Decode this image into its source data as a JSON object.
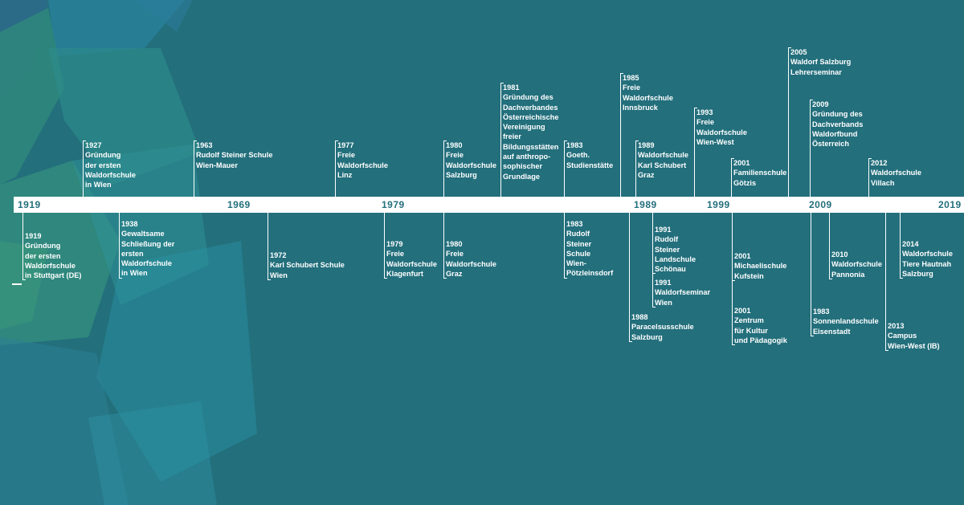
{
  "timeline": {
    "axis_years": [
      "1919",
      "1969",
      "1979",
      "1989",
      "1999",
      "2009",
      "2019"
    ],
    "events_above": [
      {
        "year": "1927",
        "lines": [
          "Gründung",
          "der ersten",
          "Waldorfschule",
          "in Wien"
        ]
      },
      {
        "year": "1963",
        "lines": [
          "Rudolf Steiner Schule",
          "Wien-Mauer"
        ]
      },
      {
        "year": "1977",
        "lines": [
          "Freie",
          "Waldorfschule",
          "Linz"
        ]
      },
      {
        "year": "1980",
        "lines": [
          "Freie",
          "Waldorfschule",
          "Salzburg"
        ]
      },
      {
        "year": "1981",
        "lines": [
          "Gründung des",
          "Dachverbandes",
          "Österreichische",
          "Vereinigung",
          "freier",
          "Bildungsstätten",
          "auf anthropo-",
          "sophischer",
          "Grundlage"
        ]
      },
      {
        "year": "1983",
        "lines": [
          "Goeth.",
          "Studienstätte"
        ]
      },
      {
        "year": "1985",
        "lines": [
          "Freie",
          "Waldorfschule",
          "Innsbruck"
        ]
      },
      {
        "year": "1989",
        "lines": [
          "Waldorfschule",
          "Karl Schubert",
          "Graz"
        ]
      },
      {
        "year": "1993",
        "lines": [
          "Freie",
          "Waldorfschule",
          "Wien-West"
        ]
      },
      {
        "year": "2001",
        "lines": [
          "Familienschule",
          "Götzis"
        ]
      },
      {
        "year": "2005",
        "lines": [
          "Waldorf Salzburg",
          "Lehrerseminar"
        ]
      },
      {
        "year": "2009",
        "lines": [
          "Gründung des",
          "Dachverbands",
          "Waldorfbund",
          "Österreich"
        ]
      },
      {
        "year": "2012",
        "lines": [
          "Waldorfschule",
          "Villach"
        ]
      }
    ],
    "events_below": [
      {
        "year": "1919",
        "lines": [
          "Gründung",
          "der ersten",
          "Waldorfschule",
          "in Stuttgart (DE)"
        ]
      },
      {
        "year": "1938",
        "lines": [
          "Gewaltsame",
          "Schließung der",
          "ersten",
          "Waldorfschule",
          "in Wien"
        ]
      },
      {
        "year": "1972",
        "lines": [
          "Karl Schubert Schule",
          "Wien"
        ]
      },
      {
        "year": "1979",
        "lines": [
          "Freie",
          "Waldorfschule",
          "Klagenfurt"
        ]
      },
      {
        "year": "1980",
        "lines": [
          "Freie",
          "Waldorfschule",
          "Graz"
        ]
      },
      {
        "year": "1983",
        "lines": [
          "Rudolf",
          "Steiner",
          "Schule",
          "Wien-",
          "Pötzleinsdorf"
        ]
      },
      {
        "year": "1988",
        "lines": [
          "Paracelsusschule",
          "Salzburg"
        ]
      },
      {
        "year": "1991",
        "lines": [
          "Rudolf",
          "Steiner",
          "Landschule",
          "Schönau"
        ]
      },
      {
        "year": "1991",
        "lines": [
          "Waldorfseminar",
          "Wien"
        ]
      },
      {
        "year": "2001",
        "lines": [
          "Michaelischule",
          "Kufstein"
        ]
      },
      {
        "year": "2001",
        "lines": [
          "Zentrum",
          "für Kultur",
          "und Pädagogik"
        ]
      },
      {
        "year": "2010",
        "lines": [
          "Waldorfschule",
          "Pannonia"
        ]
      },
      {
        "year": "1983",
        "lines": [
          "Sonnenlandschule",
          "Eisenstadt"
        ]
      },
      {
        "year": "2013",
        "lines": [
          "Campus",
          "Wien-West (IB)"
        ]
      },
      {
        "year": "2014",
        "lines": [
          "Waldorfschule",
          "Tiere Hautnah",
          "Salzburg"
        ]
      }
    ]
  },
  "colors": {
    "background": "#236f7c",
    "bar": "#ffffff",
    "text": "#ffffff"
  }
}
